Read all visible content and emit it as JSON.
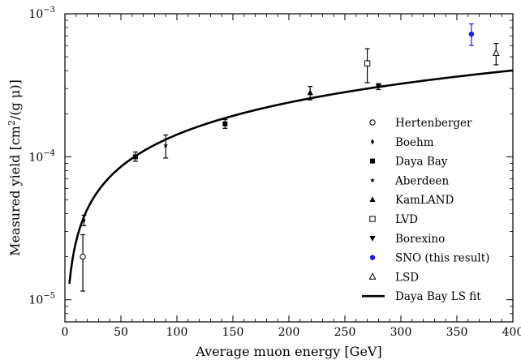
{
  "chart_data": {
    "type": "scatter",
    "xlabel": "Average muon energy [GeV]",
    "ylabel_prefix": "Measured yield [cm",
    "ylabel_sup": "2",
    "ylabel_suffix": "/(g μ)]",
    "xlim": [
      0,
      400
    ],
    "ylim": [
      7e-06,
      0.001
    ],
    "yscale": "log",
    "x_ticks": [
      0,
      50,
      100,
      150,
      200,
      250,
      300,
      350,
      400
    ],
    "x_tick_labels": [
      "0",
      "50",
      "100",
      "150",
      "200",
      "250",
      "300",
      "350",
      "400"
    ],
    "y_tick_labels": [
      {
        "value": 1e-05,
        "base": "10",
        "exp": "−5"
      },
      {
        "value": 0.0001,
        "base": "10",
        "exp": "−4"
      },
      {
        "value": 0.001,
        "base": "10",
        "exp": "−3"
      }
    ],
    "grid": false,
    "legend_position": "bottom-right",
    "series": [
      {
        "name": "Hertenberger",
        "marker": "open-circle",
        "color": "#000000",
        "points": [
          {
            "x": 16,
            "y": 2e-05,
            "yerr_low": 1.15e-05,
            "yerr_high": 2.85e-05
          }
        ]
      },
      {
        "name": "Boehm",
        "marker": "diamond",
        "color": "#000000",
        "points": [
          {
            "x": 17,
            "y": 3.6e-05,
            "yerr_low": 3.3e-05,
            "yerr_high": 3.9e-05
          }
        ]
      },
      {
        "name": "Daya Bay",
        "marker": "filled-square",
        "color": "#000000",
        "points": [
          {
            "x": 63,
            "y": 0.0001,
            "yerr_low": 9.3e-05,
            "yerr_high": 0.000108
          },
          {
            "x": 143,
            "y": 0.00017,
            "yerr_low": 0.000158,
            "yerr_high": 0.000182
          }
        ]
      },
      {
        "name": "Aberdeen",
        "marker": "star",
        "color": "#000000",
        "points": [
          {
            "x": 90,
            "y": 0.00012,
            "yerr_low": 9.8e-05,
            "yerr_high": 0.000142
          }
        ]
      },
      {
        "name": "KamLAND",
        "marker": "filled-triangle-up",
        "color": "#000000",
        "points": [
          {
            "x": 219,
            "y": 0.00028,
            "yerr_low": 0.00025,
            "yerr_high": 0.00031
          }
        ]
      },
      {
        "name": "LVD",
        "marker": "open-square",
        "color": "#000000",
        "points": [
          {
            "x": 270,
            "y": 0.00045,
            "yerr_low": 0.00033,
            "yerr_high": 0.00057
          }
        ]
      },
      {
        "name": "Borexino",
        "marker": "filled-triangle-down",
        "color": "#000000",
        "points": [
          {
            "x": 280,
            "y": 0.00031,
            "yerr_low": 0.000295,
            "yerr_high": 0.000325
          }
        ]
      },
      {
        "name": "SNO (this result)",
        "marker": "filled-circle",
        "color": "#1a1aff",
        "points": [
          {
            "x": 363,
            "y": 0.00072,
            "yerr_low": 0.0006,
            "yerr_high": 0.00085
          }
        ]
      },
      {
        "name": "LSD",
        "marker": "open-triangle-up",
        "color": "#000000",
        "points": [
          {
            "x": 385,
            "y": 0.00053,
            "yerr_low": 0.00044,
            "yerr_high": 0.00062
          }
        ]
      }
    ],
    "fit": {
      "name": "Daya Bay LS fit",
      "type": "power_law",
      "coefficient": 4.6e-06,
      "exponent": 0.746,
      "x_start": 4,
      "x_end": 400
    }
  }
}
